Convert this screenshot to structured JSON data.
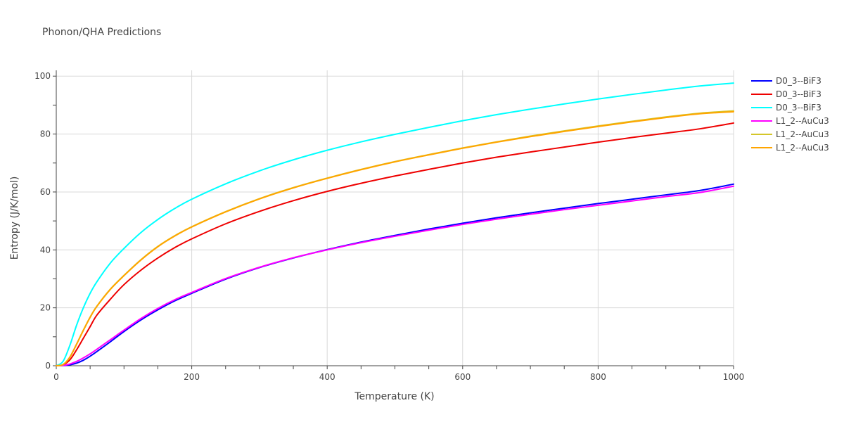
{
  "chart_data": {
    "type": "line",
    "title": "Phonon/QHA Predictions",
    "xlabel": "Temperature (K)",
    "ylabel": "Entropy (J/K/mol)",
    "xlim": [
      0,
      1000
    ],
    "ylim": [
      0,
      102
    ],
    "xticks": [
      0,
      200,
      400,
      600,
      800,
      1000
    ],
    "yticks": [
      0,
      20,
      40,
      60,
      80,
      100
    ],
    "grid": true,
    "legend_position": "right",
    "series": [
      {
        "name": "D0_3--BiF3",
        "color": "#0000ff",
        "x": [
          0,
          10,
          20,
          30,
          40,
          50,
          60,
          80,
          100,
          125,
          150,
          175,
          200,
          250,
          300,
          350,
          400,
          450,
          500,
          550,
          600,
          650,
          700,
          750,
          800,
          850,
          900,
          950,
          1000
        ],
        "y": [
          0,
          0.05,
          0.3,
          0.9,
          1.9,
          3.3,
          4.9,
          8.3,
          11.8,
          15.8,
          19.3,
          22.4,
          25.0,
          29.9,
          33.9,
          37.2,
          40.1,
          42.7,
          45.0,
          47.2,
          49.2,
          51.1,
          52.8,
          54.4,
          56.0,
          57.5,
          59.0,
          60.5,
          62.7
        ]
      },
      {
        "name": "D0_3--BiF3",
        "color": "#ee0000",
        "x": [
          0,
          10,
          20,
          30,
          40,
          50,
          60,
          80,
          100,
          125,
          150,
          175,
          200,
          250,
          300,
          350,
          400,
          450,
          500,
          550,
          600,
          650,
          700,
          750,
          800,
          850,
          900,
          950,
          1000
        ],
        "y": [
          0,
          0.3,
          2.0,
          5.5,
          9.5,
          13.5,
          17.5,
          23.0,
          28.0,
          33.0,
          37.2,
          40.8,
          43.8,
          49.0,
          53.3,
          57.0,
          60.2,
          63.0,
          65.5,
          67.8,
          70.0,
          72.0,
          73.8,
          75.5,
          77.2,
          78.8,
          80.3,
          81.8,
          83.8
        ]
      },
      {
        "name": "D0_3--BiF3",
        "color": "#00ffff",
        "x": [
          0,
          10,
          20,
          30,
          40,
          50,
          60,
          80,
          100,
          125,
          150,
          175,
          200,
          250,
          300,
          350,
          400,
          450,
          500,
          550,
          600,
          650,
          700,
          750,
          800,
          850,
          900,
          950,
          1000
        ],
        "y": [
          0,
          1.5,
          7.0,
          14.0,
          20.0,
          25.0,
          29.0,
          35.5,
          40.5,
          46.0,
          50.5,
          54.3,
          57.5,
          62.8,
          67.3,
          71.1,
          74.4,
          77.3,
          79.9,
          82.3,
          84.6,
          86.7,
          88.6,
          90.4,
          92.1,
          93.7,
          95.2,
          96.6,
          97.6
        ]
      },
      {
        "name": "L1_2--AuCu3",
        "color": "#ff00ff",
        "x": [
          0,
          10,
          20,
          30,
          40,
          50,
          60,
          80,
          100,
          125,
          150,
          175,
          200,
          250,
          300,
          350,
          400,
          450,
          500,
          550,
          600,
          650,
          700,
          750,
          800,
          850,
          900,
          950,
          1000
        ],
        "y": [
          0,
          0.1,
          0.6,
          1.5,
          2.7,
          4.1,
          5.7,
          9.0,
          12.3,
          16.3,
          19.8,
          22.8,
          25.3,
          30.1,
          34.0,
          37.3,
          40.0,
          42.5,
          44.7,
          46.8,
          48.8,
          50.6,
          52.3,
          53.9,
          55.4,
          56.9,
          58.4,
          59.8,
          62.0
        ]
      },
      {
        "name": "L1_2--AuCu3",
        "color": "#d4c62a",
        "x": [
          0,
          10,
          20,
          30,
          40,
          50,
          60,
          80,
          100,
          125,
          150,
          175,
          200,
          250,
          300,
          350,
          400,
          450,
          500,
          550,
          600,
          650,
          700,
          750,
          800,
          850,
          900,
          950,
          1000
        ],
        "y": [
          0,
          0.4,
          3.0,
          7.5,
          12.3,
          16.8,
          20.6,
          26.5,
          31.2,
          36.6,
          41.2,
          44.9,
          48.0,
          53.2,
          57.7,
          61.5,
          64.8,
          67.8,
          70.5,
          72.9,
          75.2,
          77.3,
          79.3,
          81.1,
          82.8,
          84.4,
          85.9,
          87.2,
          88.0
        ]
      },
      {
        "name": "L1_2--AuCu3",
        "color": "#ffa500",
        "x": [
          0,
          10,
          20,
          30,
          40,
          50,
          60,
          80,
          100,
          125,
          150,
          175,
          200,
          250,
          300,
          350,
          400,
          450,
          500,
          550,
          600,
          650,
          700,
          750,
          800,
          850,
          900,
          950,
          1000
        ],
        "y": [
          0,
          0.4,
          2.9,
          7.4,
          12.2,
          16.7,
          20.5,
          26.4,
          31.1,
          36.5,
          41.1,
          44.8,
          47.9,
          53.1,
          57.6,
          61.4,
          64.7,
          67.7,
          70.4,
          72.8,
          75.1,
          77.2,
          79.1,
          80.9,
          82.6,
          84.2,
          85.7,
          87.0,
          87.7
        ]
      }
    ]
  }
}
